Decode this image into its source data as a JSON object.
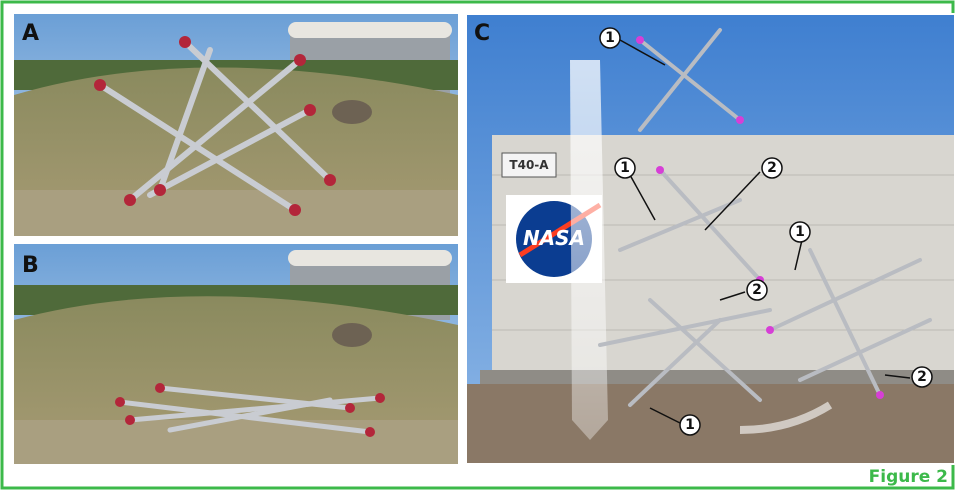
{
  "panels": [
    {
      "label": "A"
    },
    {
      "label": "B"
    },
    {
      "label": "C",
      "building_sign": "T40-A",
      "logo": "NASA",
      "markers": [
        "1",
        "2",
        "1",
        "2",
        "1",
        "2",
        "1"
      ]
    }
  ],
  "caption": "Figure 2"
}
